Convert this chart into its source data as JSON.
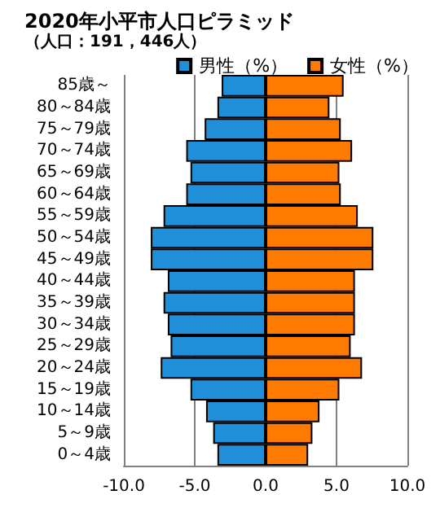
{
  "chart_data": {
    "type": "bar",
    "orientation": "horizontal",
    "title": "2020年小平市人口ピラミッド",
    "subtitle": "（人口：191，446人）",
    "categories": [
      "85歳～",
      "80～84歳",
      "75～79歳",
      "70～74歳",
      "65～69歳",
      "60～64歳",
      "55～59歳",
      "50～54歳",
      "45～49歳",
      "40～44歳",
      "35～39歳",
      "30～34歳",
      "25～29歳",
      "20～24歳",
      "15～19歳",
      "10～14歳",
      "5～9歳",
      "0～4歳"
    ],
    "series": [
      {
        "name": "男性（%）",
        "color": "#1e8fd8",
        "values": [
          -3.1,
          -3.4,
          -4.3,
          -5.6,
          -5.3,
          -5.6,
          -7.2,
          -8.1,
          -8.1,
          -6.9,
          -7.2,
          -6.9,
          -6.7,
          -7.4,
          -5.3,
          -4.2,
          -3.7,
          -3.4
        ]
      },
      {
        "name": "女性（%）",
        "color": "#ff7a00",
        "values": [
          5.5,
          4.5,
          5.3,
          6.1,
          5.2,
          5.3,
          6.5,
          7.6,
          7.6,
          6.3,
          6.3,
          6.3,
          6.0,
          6.8,
          5.2,
          3.8,
          3.3,
          3.0
        ]
      }
    ],
    "xlim": [
      -10,
      10
    ],
    "xticks": [
      {
        "value": -10,
        "label": "-10.0"
      },
      {
        "value": -5,
        "label": "-5.0"
      },
      {
        "value": 0,
        "label": "0.0"
      },
      {
        "value": 5,
        "label": "5.0"
      },
      {
        "value": 10,
        "label": "10.0"
      }
    ],
    "stacked": true,
    "grid": "x",
    "legend": "top right"
  }
}
